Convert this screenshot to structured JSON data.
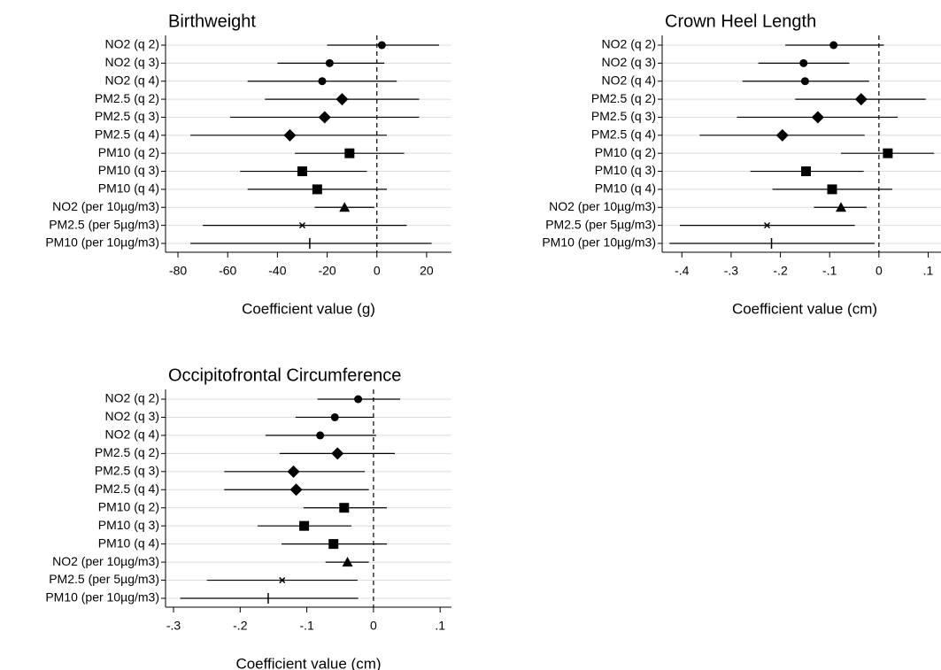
{
  "chart_data": [
    {
      "type": "forest",
      "title": "Birthweight",
      "xlabel": "Coefficient value (g)",
      "categories": [
        "NO2 (q 2)",
        "NO2 (q 3)",
        "NO2 (q 4)",
        "PM2.5 (q 2)",
        "PM2.5 (q 3)",
        "PM2.5 (q 4)",
        "PM10 (q 2)",
        "PM10 (q 3)",
        "PM10 (q 4)",
        "NO2 (per 10µg/m3)",
        "PM2.5 (per 5µg/m3)",
        "PM10 (per 10µg/m3)"
      ],
      "values": [
        2,
        -19,
        -22,
        -14,
        -21,
        -35,
        -11,
        -30,
        -24,
        -13,
        -30,
        -27
      ],
      "lower": [
        -20,
        -40,
        -52,
        -45,
        -59,
        -75,
        -33,
        -55,
        -52,
        -25,
        -70,
        -75
      ],
      "upper": [
        25,
        3,
        8,
        17,
        17,
        4,
        11,
        -4,
        4,
        -1,
        12,
        22
      ],
      "markers": [
        "circle",
        "circle",
        "circle",
        "diamond",
        "diamond",
        "diamond",
        "square",
        "square",
        "square",
        "triangle",
        "x",
        "line"
      ],
      "color": "#000000",
      "grid": true,
      "refline": 0,
      "xlim": [
        -85,
        30
      ],
      "xticks": [
        -80,
        -60,
        -40,
        -20,
        0,
        20
      ]
    },
    {
      "type": "forest",
      "title": "Crown Heel Length",
      "xlabel": "Coefficient value (cm)",
      "categories": [
        "NO2 (q 2)",
        "NO2 (q 3)",
        "NO2 (q 4)",
        "PM2.5 (q 2)",
        "PM2.5 (q 3)",
        "PM2.5 (q 4)",
        "PM10 (q 2)",
        "PM10 (q 3)",
        "PM10 (q 4)",
        "NO2 (per 10µg/m3)",
        "PM2.5 (per 5µg/m3)",
        "PM10 (per 10µg/m3)"
      ],
      "values": [
        -0.092,
        -0.153,
        -0.15,
        -0.036,
        -0.124,
        -0.196,
        0.018,
        -0.148,
        -0.095,
        -0.077,
        -0.227,
        -0.218
      ],
      "lower": [
        -0.19,
        -0.245,
        -0.277,
        -0.17,
        -0.288,
        -0.364,
        -0.077,
        -0.261,
        -0.216,
        -0.132,
        -0.404,
        -0.425
      ],
      "upper": [
        0.01,
        -0.06,
        -0.02,
        0.095,
        0.038,
        -0.029,
        0.112,
        -0.031,
        0.027,
        -0.025,
        -0.049,
        -0.009
      ],
      "markers": [
        "circle",
        "circle",
        "circle",
        "diamond",
        "diamond",
        "diamond",
        "square",
        "square",
        "square",
        "triangle",
        "x",
        "line"
      ],
      "color": "#000000",
      "grid": true,
      "refline": 0,
      "xlim": [
        -0.44,
        0.126
      ],
      "xticks": [
        {
          "value": -0.4,
          "label": "-.4"
        },
        {
          "value": -0.3,
          "label": "-.3"
        },
        {
          "value": -0.2,
          "label": "-.2"
        },
        {
          "value": -0.1,
          "label": "-.1"
        },
        0,
        {
          "value": 0.1,
          "label": ".1"
        }
      ]
    },
    {
      "type": "forest",
      "title": "Occipitofrontal Circumference",
      "xlabel": "Coefficient value (cm)",
      "categories": [
        "NO2 (q 2)",
        "NO2 (q 3)",
        "NO2 (q 4)",
        "PM2.5 (q 2)",
        "PM2.5 (q 3)",
        "PM2.5 (q 4)",
        "PM10 (q 2)",
        "PM10 (q 3)",
        "PM10 (q 4)",
        "NO2 (per 10µg/m3)",
        "PM2.5 (per 5µg/m3)",
        "PM10 (per 10µg/m3)"
      ],
      "values": [
        -0.023,
        -0.058,
        -0.08,
        -0.054,
        -0.12,
        -0.116,
        -0.044,
        -0.104,
        -0.06,
        -0.039,
        -0.137,
        -0.158
      ],
      "lower": [
        -0.084,
        -0.117,
        -0.162,
        -0.141,
        -0.224,
        -0.224,
        -0.105,
        -0.174,
        -0.138,
        -0.072,
        -0.25,
        -0.29
      ],
      "upper": [
        0.04,
        0.001,
        0.004,
        0.032,
        -0.013,
        -0.007,
        0.02,
        -0.033,
        0.02,
        -0.007,
        -0.024,
        -0.023
      ],
      "markers": [
        "circle",
        "circle",
        "circle",
        "diamond",
        "diamond",
        "diamond",
        "square",
        "square",
        "square",
        "triangle",
        "x",
        "line"
      ],
      "color": "#000000",
      "grid": true,
      "refline": 0,
      "xlim": [
        -0.312,
        0.117
      ],
      "xticks": [
        {
          "value": -0.3,
          "label": "-.3"
        },
        {
          "value": -0.2,
          "label": "-.2"
        },
        {
          "value": -0.1,
          "label": "-.1"
        },
        0,
        {
          "value": 0.1,
          "label": ".1"
        }
      ]
    }
  ]
}
